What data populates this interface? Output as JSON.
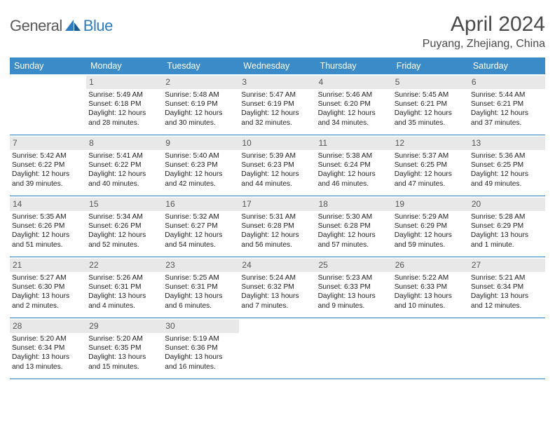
{
  "brand": {
    "part1": "General",
    "part2": "Blue"
  },
  "title": "April 2024",
  "location": "Puyang, Zhejiang, China",
  "colors": {
    "header_bg": "#3b8bc8",
    "border": "#2d7cc0",
    "daynum_bg": "#e8e8e8",
    "text": "#222222",
    "title_text": "#4a4a4a"
  },
  "day_names": [
    "Sunday",
    "Monday",
    "Tuesday",
    "Wednesday",
    "Thursday",
    "Friday",
    "Saturday"
  ],
  "weeks": [
    [
      {
        "n": "",
        "empty": true
      },
      {
        "n": "1",
        "sr": "Sunrise: 5:49 AM",
        "ss": "Sunset: 6:18 PM",
        "d1": "Daylight: 12 hours",
        "d2": "and 28 minutes."
      },
      {
        "n": "2",
        "sr": "Sunrise: 5:48 AM",
        "ss": "Sunset: 6:19 PM",
        "d1": "Daylight: 12 hours",
        "d2": "and 30 minutes."
      },
      {
        "n": "3",
        "sr": "Sunrise: 5:47 AM",
        "ss": "Sunset: 6:19 PM",
        "d1": "Daylight: 12 hours",
        "d2": "and 32 minutes."
      },
      {
        "n": "4",
        "sr": "Sunrise: 5:46 AM",
        "ss": "Sunset: 6:20 PM",
        "d1": "Daylight: 12 hours",
        "d2": "and 34 minutes."
      },
      {
        "n": "5",
        "sr": "Sunrise: 5:45 AM",
        "ss": "Sunset: 6:21 PM",
        "d1": "Daylight: 12 hours",
        "d2": "and 35 minutes."
      },
      {
        "n": "6",
        "sr": "Sunrise: 5:44 AM",
        "ss": "Sunset: 6:21 PM",
        "d1": "Daylight: 12 hours",
        "d2": "and 37 minutes."
      }
    ],
    [
      {
        "n": "7",
        "sr": "Sunrise: 5:42 AM",
        "ss": "Sunset: 6:22 PM",
        "d1": "Daylight: 12 hours",
        "d2": "and 39 minutes."
      },
      {
        "n": "8",
        "sr": "Sunrise: 5:41 AM",
        "ss": "Sunset: 6:22 PM",
        "d1": "Daylight: 12 hours",
        "d2": "and 40 minutes."
      },
      {
        "n": "9",
        "sr": "Sunrise: 5:40 AM",
        "ss": "Sunset: 6:23 PM",
        "d1": "Daylight: 12 hours",
        "d2": "and 42 minutes."
      },
      {
        "n": "10",
        "sr": "Sunrise: 5:39 AM",
        "ss": "Sunset: 6:23 PM",
        "d1": "Daylight: 12 hours",
        "d2": "and 44 minutes."
      },
      {
        "n": "11",
        "sr": "Sunrise: 5:38 AM",
        "ss": "Sunset: 6:24 PM",
        "d1": "Daylight: 12 hours",
        "d2": "and 46 minutes."
      },
      {
        "n": "12",
        "sr": "Sunrise: 5:37 AM",
        "ss": "Sunset: 6:25 PM",
        "d1": "Daylight: 12 hours",
        "d2": "and 47 minutes."
      },
      {
        "n": "13",
        "sr": "Sunrise: 5:36 AM",
        "ss": "Sunset: 6:25 PM",
        "d1": "Daylight: 12 hours",
        "d2": "and 49 minutes."
      }
    ],
    [
      {
        "n": "14",
        "sr": "Sunrise: 5:35 AM",
        "ss": "Sunset: 6:26 PM",
        "d1": "Daylight: 12 hours",
        "d2": "and 51 minutes."
      },
      {
        "n": "15",
        "sr": "Sunrise: 5:34 AM",
        "ss": "Sunset: 6:26 PM",
        "d1": "Daylight: 12 hours",
        "d2": "and 52 minutes."
      },
      {
        "n": "16",
        "sr": "Sunrise: 5:32 AM",
        "ss": "Sunset: 6:27 PM",
        "d1": "Daylight: 12 hours",
        "d2": "and 54 minutes."
      },
      {
        "n": "17",
        "sr": "Sunrise: 5:31 AM",
        "ss": "Sunset: 6:28 PM",
        "d1": "Daylight: 12 hours",
        "d2": "and 56 minutes."
      },
      {
        "n": "18",
        "sr": "Sunrise: 5:30 AM",
        "ss": "Sunset: 6:28 PM",
        "d1": "Daylight: 12 hours",
        "d2": "and 57 minutes."
      },
      {
        "n": "19",
        "sr": "Sunrise: 5:29 AM",
        "ss": "Sunset: 6:29 PM",
        "d1": "Daylight: 12 hours",
        "d2": "and 59 minutes."
      },
      {
        "n": "20",
        "sr": "Sunrise: 5:28 AM",
        "ss": "Sunset: 6:29 PM",
        "d1": "Daylight: 13 hours",
        "d2": "and 1 minute."
      }
    ],
    [
      {
        "n": "21",
        "sr": "Sunrise: 5:27 AM",
        "ss": "Sunset: 6:30 PM",
        "d1": "Daylight: 13 hours",
        "d2": "and 2 minutes."
      },
      {
        "n": "22",
        "sr": "Sunrise: 5:26 AM",
        "ss": "Sunset: 6:31 PM",
        "d1": "Daylight: 13 hours",
        "d2": "and 4 minutes."
      },
      {
        "n": "23",
        "sr": "Sunrise: 5:25 AM",
        "ss": "Sunset: 6:31 PM",
        "d1": "Daylight: 13 hours",
        "d2": "and 6 minutes."
      },
      {
        "n": "24",
        "sr": "Sunrise: 5:24 AM",
        "ss": "Sunset: 6:32 PM",
        "d1": "Daylight: 13 hours",
        "d2": "and 7 minutes."
      },
      {
        "n": "25",
        "sr": "Sunrise: 5:23 AM",
        "ss": "Sunset: 6:33 PM",
        "d1": "Daylight: 13 hours",
        "d2": "and 9 minutes."
      },
      {
        "n": "26",
        "sr": "Sunrise: 5:22 AM",
        "ss": "Sunset: 6:33 PM",
        "d1": "Daylight: 13 hours",
        "d2": "and 10 minutes."
      },
      {
        "n": "27",
        "sr": "Sunrise: 5:21 AM",
        "ss": "Sunset: 6:34 PM",
        "d1": "Daylight: 13 hours",
        "d2": "and 12 minutes."
      }
    ],
    [
      {
        "n": "28",
        "sr": "Sunrise: 5:20 AM",
        "ss": "Sunset: 6:34 PM",
        "d1": "Daylight: 13 hours",
        "d2": "and 13 minutes."
      },
      {
        "n": "29",
        "sr": "Sunrise: 5:20 AM",
        "ss": "Sunset: 6:35 PM",
        "d1": "Daylight: 13 hours",
        "d2": "and 15 minutes."
      },
      {
        "n": "30",
        "sr": "Sunrise: 5:19 AM",
        "ss": "Sunset: 6:36 PM",
        "d1": "Daylight: 13 hours",
        "d2": "and 16 minutes."
      },
      {
        "n": "",
        "empty": true
      },
      {
        "n": "",
        "empty": true
      },
      {
        "n": "",
        "empty": true
      },
      {
        "n": "",
        "empty": true
      }
    ]
  ]
}
